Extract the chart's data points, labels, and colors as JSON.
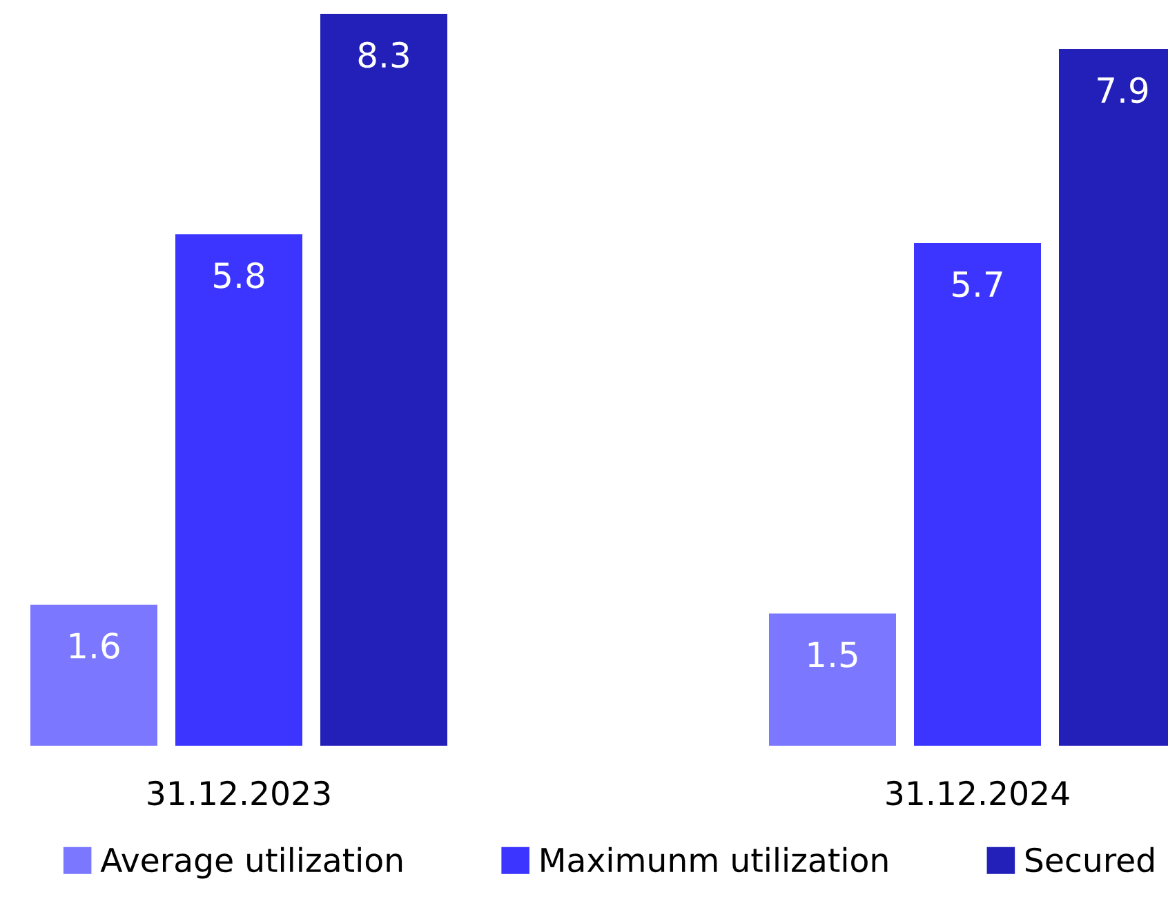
{
  "chart_data": {
    "type": "bar",
    "categories": [
      "31.12.2023",
      "31.12.2024"
    ],
    "series": [
      {
        "name": "Average utilization",
        "color": "#7b78ff",
        "values": [
          1.6,
          1.5
        ]
      },
      {
        "name": "Maximunm utilization",
        "color": "#3b35ff",
        "values": [
          5.8,
          5.7
        ]
      },
      {
        "name": "Secured",
        "color": "#2220b8",
        "values": [
          8.3,
          7.9
        ]
      }
    ],
    "data_labels": true,
    "legend": "bottom",
    "grid": false
  }
}
